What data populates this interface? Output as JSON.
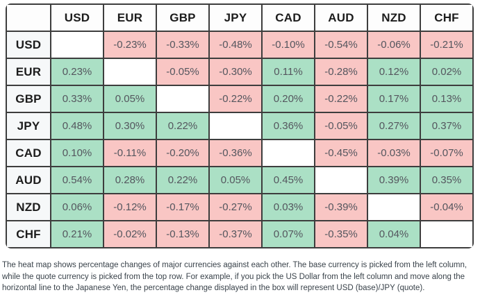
{
  "colors": {
    "positive_bg": "#abe0c5",
    "negative_bg": "#f9c6c4",
    "header_bg": "#fdfdfd",
    "row_header_bg": "#f6f8f9",
    "border": "#3d3d3d",
    "header_text": "#1c1c1c",
    "cell_text": "#54565e",
    "description_text": "#39424a"
  },
  "chart_data": {
    "type": "heatmap",
    "title": "",
    "unit": "percent change (base vs quote)",
    "columns": [
      "USD",
      "EUR",
      "GBP",
      "JPY",
      "CAD",
      "AUD",
      "NZD",
      "CHF"
    ],
    "rows": [
      {
        "base": "USD",
        "cells": [
          null,
          "-0.23%",
          "-0.33%",
          "-0.48%",
          "-0.10%",
          "-0.54%",
          "-0.06%",
          "-0.21%"
        ]
      },
      {
        "base": "EUR",
        "cells": [
          "0.23%",
          null,
          "-0.05%",
          "-0.30%",
          "0.11%",
          "-0.28%",
          "0.12%",
          "0.02%"
        ]
      },
      {
        "base": "GBP",
        "cells": [
          "0.33%",
          "0.05%",
          null,
          "-0.22%",
          "0.20%",
          "-0.22%",
          "0.17%",
          "0.13%"
        ]
      },
      {
        "base": "JPY",
        "cells": [
          "0.48%",
          "0.30%",
          "0.22%",
          null,
          "0.36%",
          "-0.05%",
          "0.27%",
          "0.37%"
        ]
      },
      {
        "base": "CAD",
        "cells": [
          "0.10%",
          "-0.11%",
          "-0.20%",
          "-0.36%",
          null,
          "-0.45%",
          "-0.03%",
          "-0.07%"
        ]
      },
      {
        "base": "AUD",
        "cells": [
          "0.54%",
          "0.28%",
          "0.22%",
          "0.05%",
          "0.45%",
          null,
          "0.39%",
          "0.35%"
        ]
      },
      {
        "base": "NZD",
        "cells": [
          "0.06%",
          "-0.12%",
          "-0.17%",
          "-0.27%",
          "0.03%",
          "-0.39%",
          null,
          "-0.04%"
        ]
      },
      {
        "base": "CHF",
        "cells": [
          "0.21%",
          "-0.02%",
          "-0.13%",
          "-0.37%",
          "0.07%",
          "-0.35%",
          "0.04%",
          null
        ]
      }
    ]
  },
  "description": "The heat map shows percentage changes of major currencies against each other. The base currency is picked from the left column, while the quote currency is picked from the top row. For example, if you pick the US Dollar from the left column and move along the horizontal line to the Japanese Yen, the percentage change displayed in the box will represent USD (base)/JPY (quote)."
}
